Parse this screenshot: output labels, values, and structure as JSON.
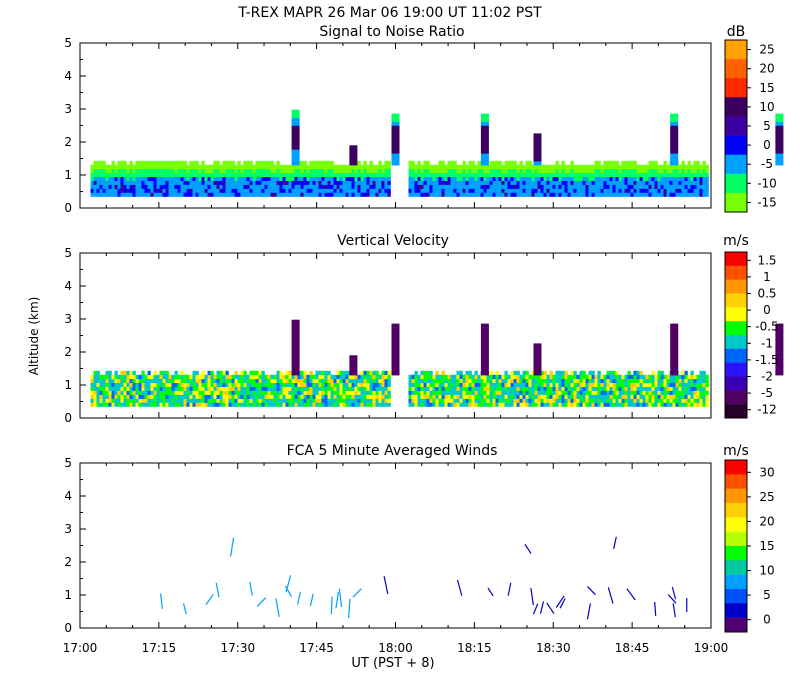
{
  "header": {
    "line1": "T-REX   MAPR 26 Mar 06   19:00 UT   11:02   PST",
    "xlabel": "UT  (PST + 8)",
    "x_ticks": [
      "17:00",
      "17:15",
      "17:30",
      "17:45",
      "18:00",
      "18:15",
      "18:30",
      "18:45",
      "19:00"
    ]
  },
  "chart_data": [
    {
      "type": "heatmap",
      "title": "Signal to Noise Ratio",
      "ylabel": "",
      "ylim": [
        0,
        5
      ],
      "y_ticks": [
        "5",
        "4",
        "3",
        "2",
        "1",
        "0"
      ],
      "x_range": [
        "17:00",
        "19:00"
      ],
      "data_gap": [
        "17:59",
        "18:02"
      ],
      "colorbar": {
        "unit": "dB",
        "labels": [
          "25",
          "20",
          "15",
          "10",
          "5",
          "0",
          "-5",
          "-10",
          "-15"
        ],
        "colors": [
          "#ffa000",
          "#ff6000",
          "#ff2800",
          "#3c0060",
          "#3c00a0",
          "#0000ff",
          "#00a0ff",
          "#00ff64",
          "#78ff00"
        ]
      }
    },
    {
      "type": "heatmap",
      "title": "Vertical Velocity",
      "ylabel": "Altitude  (km)",
      "ylim": [
        0,
        5
      ],
      "y_ticks": [
        "5",
        "4",
        "3",
        "2",
        "1",
        "0"
      ],
      "x_range": [
        "17:00",
        "19:00"
      ],
      "data_gap": [
        "17:59",
        "18:02"
      ],
      "colorbar": {
        "unit": "m/s",
        "labels": [
          "1.5",
          "1",
          "0.5",
          "0",
          "-0.5",
          "-1",
          "-1.5",
          "-2",
          "-5",
          "-12"
        ],
        "colors": [
          "#ff0000",
          "#ff5000",
          "#ff9600",
          "#ffd000",
          "#ffff00",
          "#00ff00",
          "#00c8c8",
          "#0064ff",
          "#2814ff",
          "#3c00b4",
          "#500064",
          "#280028"
        ]
      }
    },
    {
      "type": "scatter",
      "title": "FCA 5 Minute Averaged Winds",
      "ylabel": "",
      "ylim": [
        0,
        5
      ],
      "y_ticks": [
        "5",
        "4",
        "3",
        "2",
        "1",
        "0"
      ],
      "x_range": [
        "17:00",
        "19:00"
      ],
      "colorbar": {
        "unit": "m/s",
        "labels": [
          "30",
          "25",
          "20",
          "15",
          "10",
          "5",
          "0"
        ],
        "colors": [
          "#ff0000",
          "#ff5000",
          "#ff9600",
          "#ffd000",
          "#ffff00",
          "#b4ff00",
          "#00ff00",
          "#00c8a0",
          "#00a0ff",
          "#0050ff",
          "#0000c8",
          "#500070"
        ]
      }
    }
  ]
}
